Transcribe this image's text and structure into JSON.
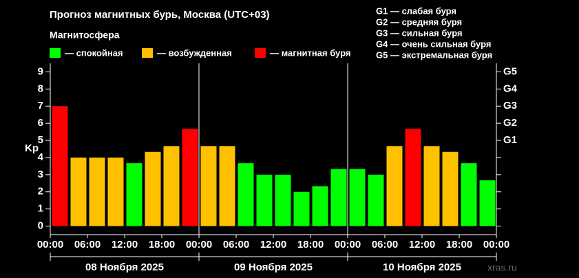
{
  "chart_data": {
    "type": "bar",
    "title": "Прогноз магнитных бурь, Москва (UTC+03)",
    "subtitle": "Магнитосфера",
    "legend": [
      {
        "label": "— спокойная",
        "color": "#00ff00"
      },
      {
        "label": "— возбужденная",
        "color": "#ffc000"
      },
      {
        "label": "— магнитная буря",
        "color": "#ff0000"
      }
    ],
    "g_scale": [
      "G1 — слабая буря",
      "G2 — средняя буря",
      "G3 — сильная буря",
      "G4 — очень сильная буря",
      "G5 — экстремальная буря"
    ],
    "ylabel": "Kp",
    "ylim": [
      -0.5,
      9.5
    ],
    "yticks": [
      0,
      1,
      2,
      3,
      4,
      5,
      6,
      7,
      8,
      9
    ],
    "y2ticks": [
      {
        "value": 5,
        "label": "G1"
      },
      {
        "value": 6,
        "label": "G2"
      },
      {
        "value": 7,
        "label": "G3"
      },
      {
        "value": 8,
        "label": "G4"
      },
      {
        "value": 9,
        "label": "G5"
      }
    ],
    "xtick_labels": [
      "00:00",
      "06:00",
      "12:00",
      "18:00",
      "00:00",
      "06:00",
      "12:00",
      "18:00",
      "00:00",
      "06:00",
      "12:00",
      "18:00",
      "00:00"
    ],
    "days": [
      "08 Ноября 2025",
      "09 Ноября 2025",
      "10 Ноября 2025"
    ],
    "values": [
      7,
      4,
      4,
      4,
      3.67,
      4.33,
      4.67,
      5.67,
      4.67,
      4.67,
      3.67,
      3,
      3,
      2,
      2.33,
      3.33,
      3.33,
      3,
      4.67,
      5.67,
      4.67,
      4.33,
      3.67,
      2.67
    ],
    "colors": [
      "#ff0000",
      "#ffc000",
      "#ffc000",
      "#ffc000",
      "#00ff00",
      "#ffc000",
      "#ffc000",
      "#ff0000",
      "#ffc000",
      "#ffc000",
      "#00ff00",
      "#00ff00",
      "#00ff00",
      "#00ff00",
      "#00ff00",
      "#00ff00",
      "#00ff00",
      "#00ff00",
      "#ffc000",
      "#ff0000",
      "#ffc000",
      "#ffc000",
      "#00ff00",
      "#00ff00"
    ],
    "watermark": "xras.ru"
  }
}
